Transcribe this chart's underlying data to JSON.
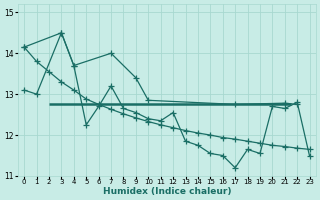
{
  "xlabel": "Humidex (Indice chaleur)",
  "xlim": [
    -0.5,
    23.5
  ],
  "ylim": [
    11,
    15.2
  ],
  "yticks": [
    11,
    12,
    13,
    14,
    15
  ],
  "bg_color": "#c8ece6",
  "grid_color": "#a8d8d0",
  "line_color": "#1a6e65",
  "line1_x": [
    0,
    1,
    3,
    4,
    5,
    6,
    7,
    8,
    9,
    10,
    11,
    12,
    13,
    14,
    15,
    16,
    17,
    18,
    19,
    20,
    21,
    22,
    23
  ],
  "line1_y": [
    13.1,
    13.0,
    14.5,
    13.7,
    12.25,
    12.7,
    13.2,
    12.65,
    12.55,
    12.4,
    12.35,
    12.55,
    11.85,
    11.75,
    11.55,
    11.5,
    11.2,
    11.65,
    11.55,
    12.7,
    12.65,
    12.8,
    11.48
  ],
  "line2_x": [
    0,
    3,
    4,
    7,
    9,
    10,
    17,
    21,
    22
  ],
  "line2_y": [
    14.15,
    14.5,
    13.7,
    14.0,
    13.4,
    12.85,
    12.75,
    12.78,
    12.75
  ],
  "line3_x": [
    0,
    1,
    2,
    3,
    4,
    5,
    6,
    7,
    8,
    9,
    10,
    11,
    12,
    13,
    14,
    15,
    16,
    17,
    18,
    19,
    20,
    21,
    22,
    23
  ],
  "line3_y": [
    14.15,
    13.8,
    13.55,
    13.3,
    13.1,
    12.88,
    12.75,
    12.63,
    12.52,
    12.42,
    12.33,
    12.25,
    12.18,
    12.11,
    12.05,
    12.0,
    11.94,
    11.9,
    11.85,
    11.8,
    11.75,
    11.72,
    11.68,
    11.65
  ],
  "hline_y": 12.75,
  "hline_xstart": 2,
  "hline_xend": 21.5
}
